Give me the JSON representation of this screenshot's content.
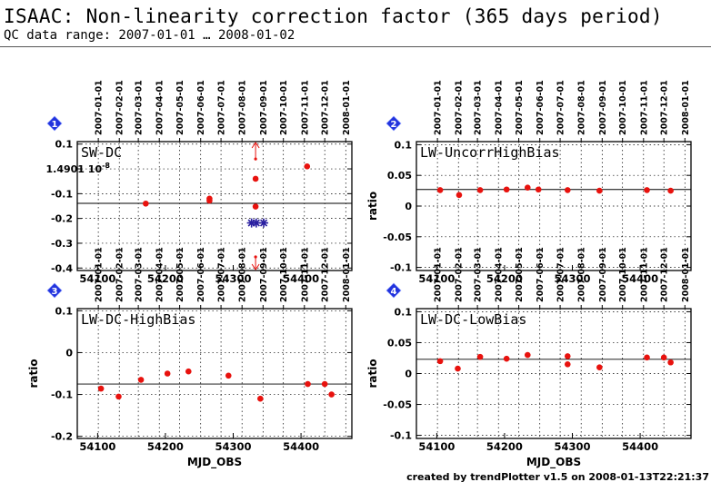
{
  "page": {
    "title": "ISAAC: Non-linearity correction factor (365 days period)",
    "subtitle": "QC data range: 2007-01-01 … 2008-01-02",
    "footer": "created by trendPlotter v1.5 on 2008-01-13T22:21:37"
  },
  "colors": {
    "marker": "#e8120e",
    "outlier": "#2a1fa0",
    "badge": "#2233dd",
    "grid": "#000000"
  },
  "chart_data": [
    {
      "type": "scatter",
      "panel": 1,
      "label": "SW-DC",
      "ylabel": "",
      "xlabel": "",
      "xlim": [
        54070,
        54475
      ],
      "ylim": [
        -0.41,
        0.11
      ],
      "yticks": [
        0.1,
        "1.4901 10^-8",
        -0.1,
        -0.2,
        -0.3,
        -0.4
      ],
      "ytick_values": [
        0.1,
        0,
        -0.1,
        -0.2,
        -0.3,
        -0.4
      ],
      "xticks": [
        "54100",
        "54200",
        "54300",
        "54400"
      ],
      "xtick_values": [
        54100,
        54200,
        54300,
        54400
      ],
      "ref_line": -0.139,
      "points": [
        {
          "x": 54171,
          "y": -0.14
        },
        {
          "x": 54265,
          "y": -0.12
        },
        {
          "x": 54265,
          "y": -0.128
        },
        {
          "x": 54333,
          "y": -0.04
        },
        {
          "x": 54333,
          "y": -0.152
        },
        {
          "x": 54409,
          "y": 0.01
        }
      ],
      "outliers": [
        {
          "x": 54327,
          "y": -0.218
        },
        {
          "x": 54334,
          "y": -0.218
        },
        {
          "x": 54345,
          "y": -0.218
        }
      ],
      "arrows": {
        "x": 54333,
        "top_from": 0.04,
        "bottom_from": -0.355
      }
    },
    {
      "type": "scatter",
      "panel": 2,
      "label": "LW-UncorrHighBias",
      "ylabel": "ratio",
      "xlabel": "",
      "xlim": [
        54070,
        54475
      ],
      "ylim": [
        -0.105,
        0.105
      ],
      "yticks": [
        "0.1",
        "0.05",
        "0",
        "-0.05",
        "-0.1"
      ],
      "ytick_values": [
        0.1,
        0.05,
        0,
        -0.05,
        -0.1
      ],
      "xticks": [
        "54100",
        "54200",
        "54300",
        "54400"
      ],
      "xtick_values": [
        54100,
        54200,
        54300,
        54400
      ],
      "ref_line": 0.027,
      "points": [
        {
          "x": 54105,
          "y": 0.026
        },
        {
          "x": 54133,
          "y": 0.018
        },
        {
          "x": 54164,
          "y": 0.026
        },
        {
          "x": 54203,
          "y": 0.027
        },
        {
          "x": 54234,
          "y": 0.03
        },
        {
          "x": 54250,
          "y": 0.027
        },
        {
          "x": 54293,
          "y": 0.026
        },
        {
          "x": 54340,
          "y": 0.025
        },
        {
          "x": 54410,
          "y": 0.026
        },
        {
          "x": 54445,
          "y": 0.025
        }
      ]
    },
    {
      "type": "scatter",
      "panel": 3,
      "label": "LW-DC-HighBias",
      "ylabel": "ratio",
      "xlabel": "MJD_OBS",
      "xlim": [
        54070,
        54475
      ],
      "ylim": [
        -0.205,
        0.105
      ],
      "yticks": [
        "0.1",
        "0",
        "-0.1",
        "-0.2"
      ],
      "ytick_values": [
        0.1,
        0,
        -0.1,
        -0.2
      ],
      "xticks": [
        "54100",
        "54200",
        "54300",
        "54400"
      ],
      "xtick_values": [
        54100,
        54200,
        54300,
        54400
      ],
      "ref_line": -0.075,
      "points": [
        {
          "x": 54105,
          "y": -0.086
        },
        {
          "x": 54131,
          "y": -0.105
        },
        {
          "x": 54164,
          "y": -0.065
        },
        {
          "x": 54203,
          "y": -0.05
        },
        {
          "x": 54234,
          "y": -0.045
        },
        {
          "x": 54293,
          "y": -0.055
        },
        {
          "x": 54340,
          "y": -0.11
        },
        {
          "x": 54410,
          "y": -0.075
        },
        {
          "x": 54435,
          "y": -0.075
        },
        {
          "x": 54445,
          "y": -0.1
        }
      ]
    },
    {
      "type": "scatter",
      "panel": 4,
      "label": "LW-DC-LowBias",
      "ylabel": "ratio",
      "xlabel": "MJD_OBS",
      "xlim": [
        54070,
        54475
      ],
      "ylim": [
        -0.105,
        0.105
      ],
      "yticks": [
        "0.1",
        "0.05",
        "0",
        "-0.05",
        "-0.1"
      ],
      "ytick_values": [
        0.1,
        0.05,
        0,
        -0.05,
        -0.1
      ],
      "xticks": [
        "54100",
        "54200",
        "54300",
        "54400"
      ],
      "xtick_values": [
        54100,
        54200,
        54300,
        54400
      ],
      "ref_line": 0.023,
      "points": [
        {
          "x": 54105,
          "y": 0.02
        },
        {
          "x": 54131,
          "y": 0.008
        },
        {
          "x": 54164,
          "y": 0.027
        },
        {
          "x": 54203,
          "y": 0.024
        },
        {
          "x": 54234,
          "y": 0.03
        },
        {
          "x": 54293,
          "y": 0.028
        },
        {
          "x": 54293,
          "y": 0.015
        },
        {
          "x": 54340,
          "y": 0.01
        },
        {
          "x": 54410,
          "y": 0.026
        },
        {
          "x": 54435,
          "y": 0.026
        },
        {
          "x": 54445,
          "y": 0.018
        }
      ]
    }
  ],
  "date_axis": {
    "labels": [
      "2007-01-01",
      "2007-02-01",
      "2007-03-01",
      "2007-04-01",
      "2007-05-01",
      "2007-06-01",
      "2007-07-01",
      "2007-08-01",
      "2007-09-01",
      "2007-10-01",
      "2007-11-01",
      "2007-12-01",
      "2008-01-01"
    ],
    "mjd": [
      54101,
      54132,
      54160,
      54191,
      54221,
      54252,
      54282,
      54313,
      54344,
      54374,
      54405,
      54435,
      54466
    ]
  }
}
